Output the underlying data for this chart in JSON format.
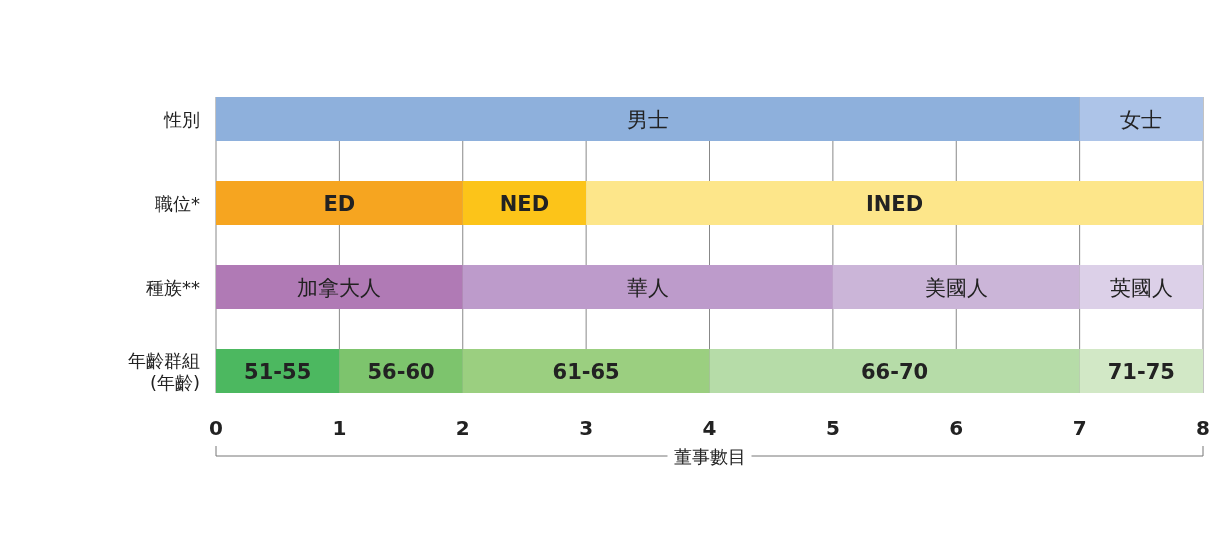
{
  "chart_data": {
    "type": "bar",
    "orientation": "horizontal",
    "stacked": true,
    "categories": [
      "性別",
      "職位*",
      "種族**",
      "年齡群組 (年齡)"
    ],
    "xlabel": "董事數目",
    "xlim": [
      0,
      8
    ],
    "xticks": [
      0,
      1,
      2,
      3,
      4,
      5,
      6,
      7,
      8
    ],
    "grid": "x",
    "series": [
      {
        "name": "男士",
        "color": "#8eb0dc",
        "values": [
          7,
          null,
          null,
          null
        ]
      },
      {
        "name": "女士",
        "color": "#adc4e8",
        "values": [
          1,
          null,
          null,
          null
        ]
      },
      {
        "name": "ED",
        "color": "#f6a520",
        "values": [
          null,
          2,
          null,
          null
        ]
      },
      {
        "name": "NED",
        "color": "#fcc419",
        "values": [
          null,
          1,
          null,
          null
        ]
      },
      {
        "name": "INED",
        "color": "#fde68a",
        "values": [
          null,
          5,
          null,
          null
        ]
      },
      {
        "name": "加拿大人",
        "color": "#b07ab5",
        "values": [
          null,
          null,
          2,
          null
        ]
      },
      {
        "name": "華人",
        "color": "#bd9bcb",
        "values": [
          null,
          null,
          3,
          null
        ]
      },
      {
        "name": "美國人",
        "color": "#cbb5d8",
        "values": [
          null,
          null,
          2,
          null
        ]
      },
      {
        "name": "英國人",
        "color": "#dcd0e8",
        "values": [
          null,
          null,
          1,
          null
        ]
      },
      {
        "name": "51-55",
        "color": "#4cb860",
        "values": [
          null,
          null,
          null,
          1
        ]
      },
      {
        "name": "56-60",
        "color": "#7dc46d",
        "values": [
          null,
          null,
          null,
          1
        ]
      },
      {
        "name": "61-65",
        "color": "#9bcf80",
        "values": [
          null,
          null,
          null,
          2
        ]
      },
      {
        "name": "66-70",
        "color": "#b6dca8",
        "values": [
          null,
          null,
          null,
          3
        ]
      },
      {
        "name": "71-75",
        "color": "#d2e8c6",
        "values": [
          null,
          null,
          null,
          1
        ]
      }
    ]
  }
}
